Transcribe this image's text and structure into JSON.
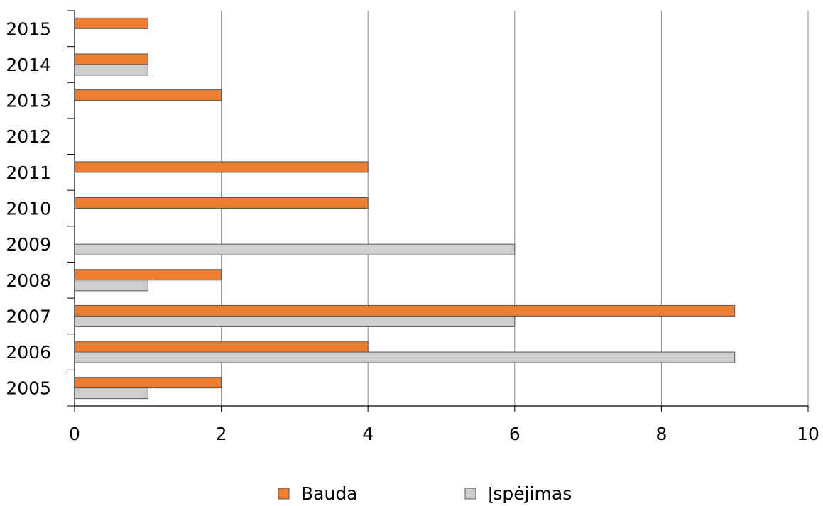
{
  "chart_data": {
    "type": "bar",
    "orientation": "horizontal",
    "categories": [
      "2005",
      "2006",
      "2007",
      "2008",
      "2009",
      "2010",
      "2011",
      "2012",
      "2013",
      "2014",
      "2015"
    ],
    "series": [
      {
        "name": "Bauda",
        "color": "#ED7D31",
        "values": [
          2,
          4,
          9,
          2,
          0,
          4,
          4,
          0,
          2,
          1,
          1
        ]
      },
      {
        "name": "Įspėjimas",
        "color": "#D0CECE",
        "values": [
          1,
          9,
          6,
          1,
          6,
          0,
          0,
          0,
          0,
          1,
          0
        ]
      }
    ],
    "xlim": [
      0,
      10
    ],
    "xticks": [
      "0",
      "2",
      "4",
      "6",
      "8",
      "10"
    ],
    "grid": true,
    "legend_position": "bottom"
  }
}
